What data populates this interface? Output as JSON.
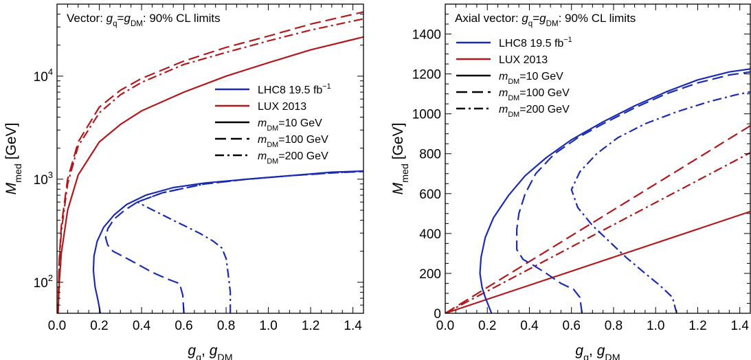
{
  "chart_data": [
    {
      "type": "line",
      "title_parts": [
        "Vector: ",
        "g",
        "q",
        "=",
        "g",
        "DM",
        ": 90% CL limits"
      ],
      "xlabel_parts": [
        "g",
        "q",
        ", ",
        "g",
        "DM"
      ],
      "ylabel_parts": [
        "M",
        "med",
        " [GeV]"
      ],
      "xlim": [
        0,
        1.45
      ],
      "ylim": [
        50,
        50000
      ],
      "yscale": "log",
      "xticks": [
        "0.0",
        "0.2",
        "0.4",
        "0.6",
        "0.8",
        "1.0",
        "1.2",
        "1.4"
      ],
      "yticks": [
        {
          "base": "10",
          "exp": "2"
        },
        {
          "base": "10",
          "exp": "3"
        },
        {
          "base": "10",
          "exp": "4"
        }
      ],
      "legend_position": "center-right",
      "legend": [
        {
          "label": "LHC8 19.5 fb",
          "sup": "−1",
          "color": "#1a2bb0",
          "dash": "solid"
        },
        {
          "label": "LUX 2013",
          "color": "#b0181b",
          "dash": "solid"
        },
        {
          "label_parts": [
            "m",
            "DM",
            "=10 GeV"
          ],
          "color": "#000000",
          "dash": "solid"
        },
        {
          "label_parts": [
            "m",
            "DM",
            "=100 GeV"
          ],
          "color": "#000000",
          "dash": "dashed"
        },
        {
          "label_parts": [
            "m",
            "DM",
            "=200 GeV"
          ],
          "color": "#000000",
          "dash": "dashdot"
        }
      ],
      "series": [
        {
          "experiment": "LUX 2013",
          "m_DM_GeV": 10,
          "color": "#b0181b",
          "dash": "solid",
          "points": [
            [
              0.005,
              50
            ],
            [
              0.01,
              95
            ],
            [
              0.02,
              190
            ],
            [
              0.05,
              500
            ],
            [
              0.1,
              1100
            ],
            [
              0.2,
              2300
            ],
            [
              0.3,
              3400
            ],
            [
              0.4,
              4600
            ],
            [
              0.6,
              7000
            ],
            [
              0.8,
              10000
            ],
            [
              1.0,
              13500
            ],
            [
              1.2,
              18000
            ],
            [
              1.45,
              24000
            ]
          ]
        },
        {
          "experiment": "LUX 2013",
          "m_DM_GeV": 100,
          "color": "#b0181b",
          "dash": "dashed",
          "points": [
            [
              0.005,
              50
            ],
            [
              0.01,
              160
            ],
            [
              0.02,
              350
            ],
            [
              0.05,
              1000
            ],
            [
              0.1,
              2300
            ],
            [
              0.2,
              5000
            ],
            [
              0.3,
              7300
            ],
            [
              0.4,
              9500
            ],
            [
              0.6,
              14000
            ],
            [
              0.8,
              19000
            ],
            [
              1.0,
              24500
            ],
            [
              1.2,
              32000
            ],
            [
              1.45,
              42000
            ]
          ]
        },
        {
          "experiment": "LUX 2013",
          "m_DM_GeV": 200,
          "color": "#b0181b",
          "dash": "dashdot",
          "points": [
            [
              0.005,
              50
            ],
            [
              0.01,
              140
            ],
            [
              0.02,
              310
            ],
            [
              0.05,
              900
            ],
            [
              0.1,
              2100
            ],
            [
              0.2,
              4400
            ],
            [
              0.3,
              6600
            ],
            [
              0.4,
              8700
            ],
            [
              0.6,
              13000
            ],
            [
              0.8,
              17000
            ],
            [
              1.0,
              22000
            ],
            [
              1.2,
              28000
            ],
            [
              1.45,
              36000
            ]
          ]
        },
        {
          "experiment": "LHC8 19.5 fb-1",
          "m_DM_GeV": 10,
          "color": "#1a2bb0",
          "dash": "solid",
          "points": [
            [
              0.205,
              50
            ],
            [
              0.195,
              65
            ],
            [
              0.18,
              90
            ],
            [
              0.172,
              130
            ],
            [
              0.175,
              180
            ],
            [
              0.19,
              250
            ],
            [
              0.22,
              340
            ],
            [
              0.27,
              450
            ],
            [
              0.33,
              570
            ],
            [
              0.42,
              700
            ],
            [
              0.55,
              830
            ],
            [
              0.7,
              920
            ],
            [
              0.9,
              1000
            ],
            [
              1.1,
              1080
            ],
            [
              1.3,
              1170
            ],
            [
              1.45,
              1200
            ]
          ]
        },
        {
          "experiment": "LHC8 19.5 fb-1",
          "m_DM_GeV": 100,
          "color": "#1a2bb0",
          "dash": "dashed",
          "points": [
            [
              0.6,
              50
            ],
            [
              0.595,
              75
            ],
            [
              0.58,
              97
            ],
            [
              0.52,
              108
            ],
            [
              0.45,
              125
            ],
            [
              0.38,
              150
            ],
            [
              0.32,
              175
            ],
            [
              0.265,
              200
            ],
            [
              0.24,
              230
            ],
            [
              0.23,
              270
            ],
            [
              0.24,
              330
            ],
            [
              0.27,
              410
            ],
            [
              0.32,
              500
            ],
            [
              0.38,
              600
            ],
            [
              0.5,
              740
            ],
            [
              0.7,
              900
            ],
            [
              0.9,
              1000
            ],
            [
              1.1,
              1080
            ],
            [
              1.3,
              1150
            ],
            [
              1.45,
              1190
            ]
          ]
        },
        {
          "experiment": "LHC8 19.5 fb-1",
          "m_DM_GeV": 200,
          "color": "#1a2bb0",
          "dash": "dashdot",
          "points": [
            [
              0.82,
              50
            ],
            [
              0.82,
              80
            ],
            [
              0.81,
              120
            ],
            [
              0.8,
              170
            ],
            [
              0.78,
              215
            ],
            [
              0.74,
              250
            ],
            [
              0.68,
              295
            ],
            [
              0.62,
              340
            ],
            [
              0.56,
              390
            ],
            [
              0.5,
              450
            ],
            [
              0.43,
              530
            ],
            [
              0.38,
              600
            ],
            [
              0.5,
              740
            ],
            [
              0.7,
              900
            ],
            [
              0.9,
              1000
            ],
            [
              1.1,
              1080
            ],
            [
              1.3,
              1150
            ],
            [
              1.45,
              1190
            ]
          ]
        }
      ]
    },
    {
      "type": "line",
      "title_parts": [
        "Axial vector: ",
        "g",
        "q",
        "=",
        "g",
        "DM",
        ": 90% CL limits"
      ],
      "xlabel_parts": [
        "g",
        "q",
        ", ",
        "g",
        "DM"
      ],
      "ylabel_parts": [
        "M",
        "med",
        " [GeV]"
      ],
      "xlim": [
        0,
        1.45
      ],
      "ylim": [
        0,
        1550
      ],
      "yscale": "linear",
      "xticks": [
        "0.0",
        "0.2",
        "0.4",
        "0.6",
        "0.8",
        "1.0",
        "1.2",
        "1.4"
      ],
      "yticks": [
        "0",
        "200",
        "400",
        "600",
        "800",
        "1000",
        "1200",
        "1400"
      ],
      "legend_position": "top-left",
      "legend": [
        {
          "label": "LHC8 19.5 fb",
          "sup": "−1",
          "color": "#1a2bb0",
          "dash": "solid"
        },
        {
          "label": "LUX 2013",
          "color": "#b0181b",
          "dash": "solid"
        },
        {
          "label_parts": [
            "m",
            "DM",
            "=10 GeV"
          ],
          "color": "#000000",
          "dash": "solid"
        },
        {
          "label_parts": [
            "m",
            "DM",
            "=100 GeV"
          ],
          "color": "#000000",
          "dash": "dashed"
        },
        {
          "label_parts": [
            "m",
            "DM",
            "=200 GeV"
          ],
          "color": "#000000",
          "dash": "dashdot"
        }
      ],
      "series": [
        {
          "experiment": "LUX 2013",
          "m_DM_GeV": 10,
          "color": "#b0181b",
          "dash": "solid",
          "points": [
            [
              0,
              0
            ],
            [
              1.45,
              510
            ]
          ]
        },
        {
          "experiment": "LUX 2013",
          "m_DM_GeV": 100,
          "color": "#b0181b",
          "dash": "dashed",
          "points": [
            [
              0,
              0
            ],
            [
              1.45,
              940
            ]
          ]
        },
        {
          "experiment": "LUX 2013",
          "m_DM_GeV": 200,
          "color": "#b0181b",
          "dash": "dashdot",
          "points": [
            [
              0,
              0
            ],
            [
              1.45,
              805
            ]
          ]
        },
        {
          "experiment": "LHC8 19.5 fb-1",
          "m_DM_GeV": 10,
          "color": "#1a2bb0",
          "dash": "solid",
          "points": [
            [
              0.22,
              0
            ],
            [
              0.205,
              40
            ],
            [
              0.19,
              80
            ],
            [
              0.175,
              130
            ],
            [
              0.165,
              200
            ],
            [
              0.17,
              280
            ],
            [
              0.19,
              380
            ],
            [
              0.23,
              480
            ],
            [
              0.3,
              590
            ],
            [
              0.38,
              690
            ],
            [
              0.48,
              780
            ],
            [
              0.6,
              870
            ],
            [
              0.75,
              960
            ],
            [
              0.9,
              1040
            ],
            [
              1.05,
              1110
            ],
            [
              1.2,
              1170
            ],
            [
              1.35,
              1210
            ],
            [
              1.45,
              1225
            ]
          ]
        },
        {
          "experiment": "LHC8 19.5 fb-1",
          "m_DM_GeV": 100,
          "color": "#1a2bb0",
          "dash": "dashed",
          "points": [
            [
              0.65,
              0
            ],
            [
              0.64,
              80
            ],
            [
              0.61,
              120
            ],
            [
              0.55,
              150
            ],
            [
              0.48,
              200
            ],
            [
              0.42,
              240
            ],
            [
              0.37,
              270
            ],
            [
              0.34,
              320
            ],
            [
              0.34,
              420
            ],
            [
              0.35,
              500
            ],
            [
              0.38,
              600
            ],
            [
              0.43,
              700
            ],
            [
              0.52,
              800
            ],
            [
              0.63,
              880
            ],
            [
              0.75,
              950
            ],
            [
              0.9,
              1030
            ],
            [
              1.05,
              1100
            ],
            [
              1.2,
              1155
            ],
            [
              1.35,
              1195
            ],
            [
              1.45,
              1210
            ]
          ]
        },
        {
          "experiment": "LHC8 19.5 fb-1",
          "m_DM_GeV": 200,
          "color": "#1a2bb0",
          "dash": "dashdot",
          "points": [
            [
              1.1,
              0
            ],
            [
              1.08,
              80
            ],
            [
              1.02,
              140
            ],
            [
              0.95,
              200
            ],
            [
              0.86,
              280
            ],
            [
              0.78,
              360
            ],
            [
              0.7,
              440
            ],
            [
              0.63,
              530
            ],
            [
              0.6,
              620
            ],
            [
              0.64,
              710
            ],
            [
              0.72,
              800
            ],
            [
              0.82,
              880
            ],
            [
              0.95,
              950
            ],
            [
              1.1,
              1010
            ],
            [
              1.25,
              1060
            ],
            [
              1.38,
              1095
            ],
            [
              1.45,
              1110
            ]
          ]
        }
      ]
    }
  ]
}
